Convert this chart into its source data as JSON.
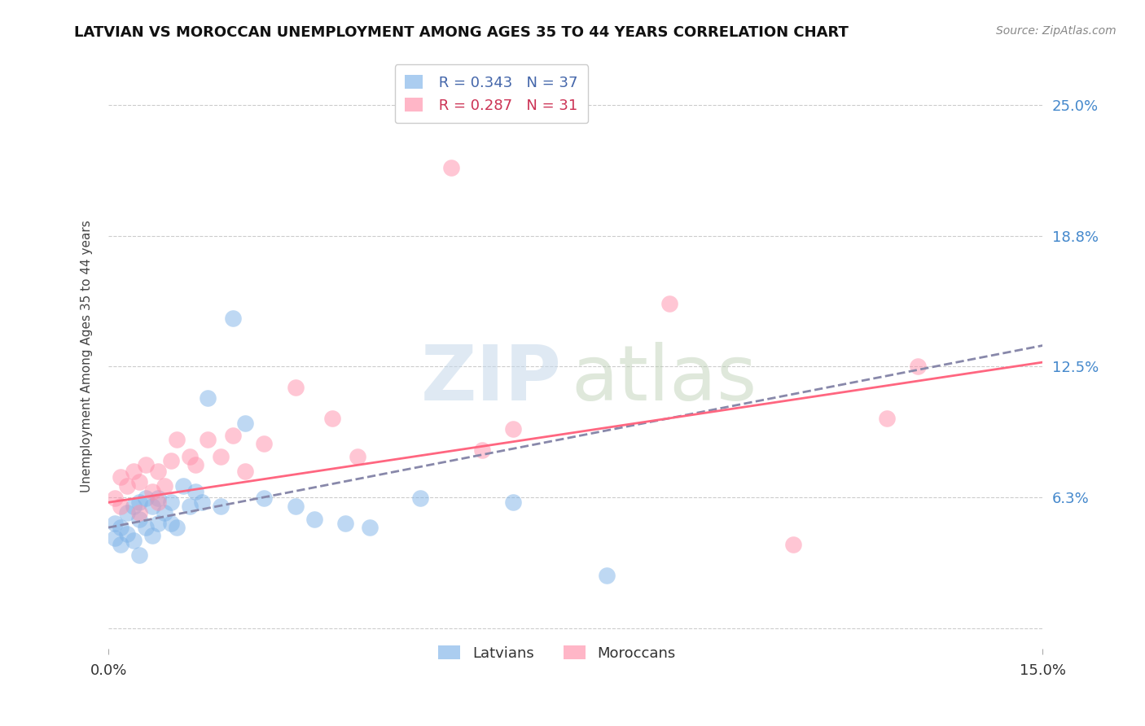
{
  "title": "LATVIAN VS MOROCCAN UNEMPLOYMENT AMONG AGES 35 TO 44 YEARS CORRELATION CHART",
  "source": "Source: ZipAtlas.com",
  "ylabel_ticks_values": [
    0.0,
    0.0625,
    0.125,
    0.1875,
    0.25
  ],
  "ylabel_ticks_labels": [
    "",
    "6.3%",
    "12.5%",
    "18.8%",
    "25.0%"
  ],
  "xlim": [
    0.0,
    0.15
  ],
  "ylim": [
    -0.01,
    0.27
  ],
  "ylabel": "Unemployment Among Ages 35 to 44 years",
  "latvian_R": "0.343",
  "latvian_N": "37",
  "moroccan_R": "0.287",
  "moroccan_N": "31",
  "latvian_color": "#7EB3E8",
  "moroccan_color": "#FF8FAA",
  "trend_latvian_color": "#8888AA",
  "trend_moroccan_color": "#FF6680",
  "latvian_x": [
    0.001,
    0.001,
    0.002,
    0.002,
    0.003,
    0.003,
    0.004,
    0.004,
    0.005,
    0.005,
    0.005,
    0.006,
    0.006,
    0.007,
    0.007,
    0.008,
    0.008,
    0.009,
    0.01,
    0.01,
    0.011,
    0.012,
    0.013,
    0.014,
    0.015,
    0.016,
    0.018,
    0.02,
    0.022,
    0.025,
    0.03,
    0.033,
    0.038,
    0.042,
    0.05,
    0.065,
    0.08
  ],
  "latvian_y": [
    0.05,
    0.043,
    0.048,
    0.04,
    0.055,
    0.045,
    0.058,
    0.042,
    0.06,
    0.052,
    0.035,
    0.062,
    0.048,
    0.058,
    0.044,
    0.062,
    0.05,
    0.055,
    0.06,
    0.05,
    0.048,
    0.068,
    0.058,
    0.065,
    0.06,
    0.11,
    0.058,
    0.148,
    0.098,
    0.062,
    0.058,
    0.052,
    0.05,
    0.048,
    0.062,
    0.06,
    0.025
  ],
  "moroccan_x": [
    0.001,
    0.002,
    0.002,
    0.003,
    0.004,
    0.005,
    0.005,
    0.006,
    0.007,
    0.008,
    0.008,
    0.009,
    0.01,
    0.011,
    0.013,
    0.014,
    0.016,
    0.018,
    0.02,
    0.022,
    0.025,
    0.03,
    0.036,
    0.04,
    0.055,
    0.06,
    0.065,
    0.09,
    0.11,
    0.125,
    0.13
  ],
  "moroccan_y": [
    0.062,
    0.072,
    0.058,
    0.068,
    0.075,
    0.07,
    0.055,
    0.078,
    0.065,
    0.075,
    0.06,
    0.068,
    0.08,
    0.09,
    0.082,
    0.078,
    0.09,
    0.082,
    0.092,
    0.075,
    0.088,
    0.115,
    0.1,
    0.082,
    0.22,
    0.085,
    0.095,
    0.155,
    0.04,
    0.1,
    0.125
  ],
  "trend_latvian_start_y": 0.048,
  "trend_latvian_end_y": 0.135,
  "trend_moroccan_start_y": 0.06,
  "trend_moroccan_end_y": 0.127,
  "grid_color": "#cccccc",
  "tick_label_color": "#4488CC",
  "title_fontsize": 13,
  "source_fontsize": 10,
  "axis_label_fontsize": 11,
  "tick_fontsize": 13,
  "legend_fontsize": 13
}
